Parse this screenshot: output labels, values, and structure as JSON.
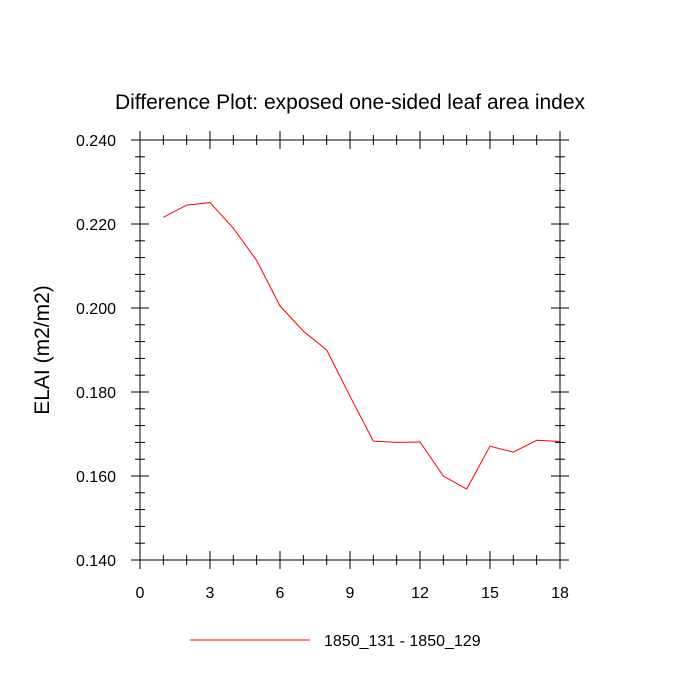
{
  "chart_data": {
    "type": "line",
    "title": "Difference Plot: exposed one-sided leaf area index",
    "xlabel": "",
    "ylabel": "ELAI  (m2/m2)",
    "xlim": [
      0,
      18
    ],
    "ylim": [
      0.14,
      0.24
    ],
    "xticks": [
      0,
      3,
      6,
      9,
      12,
      15,
      18
    ],
    "xtick_labels": [
      "0",
      "3",
      "6",
      "9",
      "12",
      "15",
      "18"
    ],
    "yticks": [
      0.14,
      0.16,
      0.18,
      0.2,
      0.22,
      0.24
    ],
    "ytick_labels": [
      "0.140",
      "0.160",
      "0.180",
      "0.200",
      "0.220",
      "0.240"
    ],
    "grid": false,
    "legend_position": "bottom",
    "series": [
      {
        "name": "1850_131 - 1850_129",
        "color": "#ff0000",
        "x": [
          1,
          2,
          3,
          4,
          5,
          6,
          7,
          8,
          9,
          10,
          11,
          12,
          13,
          14,
          15,
          16,
          17,
          18
        ],
        "y": [
          0.2216,
          0.2245,
          0.2251,
          0.219,
          0.2113,
          0.2005,
          0.1945,
          0.19,
          0.179,
          0.1683,
          0.168,
          0.1681,
          0.16,
          0.1569,
          0.1671,
          0.1657,
          0.1685,
          0.1682
        ]
      }
    ]
  }
}
